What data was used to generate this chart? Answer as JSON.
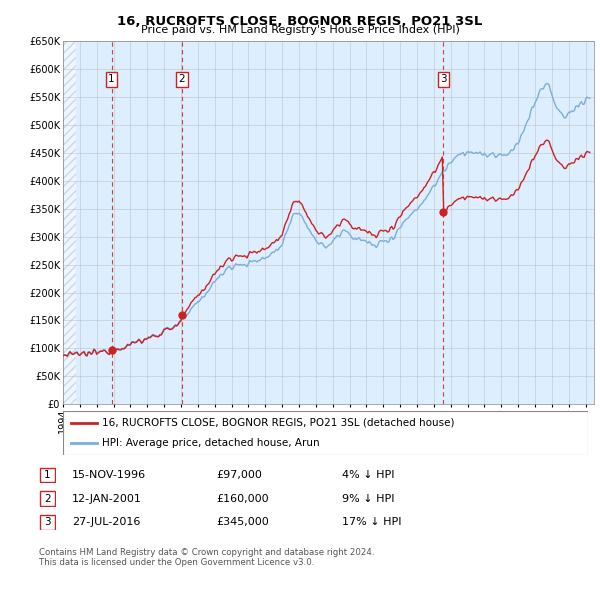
{
  "title": "16, RUCROFTS CLOSE, BOGNOR REGIS, PO21 3SL",
  "subtitle": "Price paid vs. HM Land Registry's House Price Index (HPI)",
  "ylim": [
    0,
    650000
  ],
  "yticks": [
    0,
    50000,
    100000,
    150000,
    200000,
    250000,
    300000,
    350000,
    400000,
    450000,
    500000,
    550000,
    600000,
    650000
  ],
  "ytick_labels": [
    "£0",
    "£50K",
    "£100K",
    "£150K",
    "£200K",
    "£250K",
    "£300K",
    "£350K",
    "£400K",
    "£450K",
    "£500K",
    "£550K",
    "£600K",
    "£650K"
  ],
  "xlim_start": 1994.0,
  "xlim_end": 2025.5,
  "transactions": [
    {
      "date_label": "15-NOV-1996",
      "year": 1996.88,
      "price": 97000,
      "label": "1"
    },
    {
      "date_label": "12-JAN-2001",
      "year": 2001.04,
      "price": 160000,
      "label": "2"
    },
    {
      "date_label": "27-JUL-2016",
      "year": 2016.57,
      "price": 345000,
      "label": "3"
    }
  ],
  "hpi_line_color": "#7aaedc",
  "price_line_color": "#cc2222",
  "transaction_marker_color": "#cc2222",
  "legend_line1": "16, RUCROFTS CLOSE, BOGNOR REGIS, PO21 3SL (detached house)",
  "legend_line2": "HPI: Average price, detached house, Arun",
  "table_rows": [
    {
      "num": "1",
      "date": "15-NOV-1996",
      "price": "£97,000",
      "hpi": "4% ↓ HPI"
    },
    {
      "num": "2",
      "date": "12-JAN-2001",
      "price": "£160,000",
      "hpi": "9% ↓ HPI"
    },
    {
      "num": "3",
      "date": "27-JUL-2016",
      "price": "£345,000",
      "hpi": "17% ↓ HPI"
    }
  ],
  "footnote": "Contains HM Land Registry data © Crown copyright and database right 2024.\nThis data is licensed under the Open Government Licence v3.0.",
  "bg_color": "#ffffff",
  "plot_bg_color": "#ddeeff",
  "grid_color": "#aaaaaa"
}
